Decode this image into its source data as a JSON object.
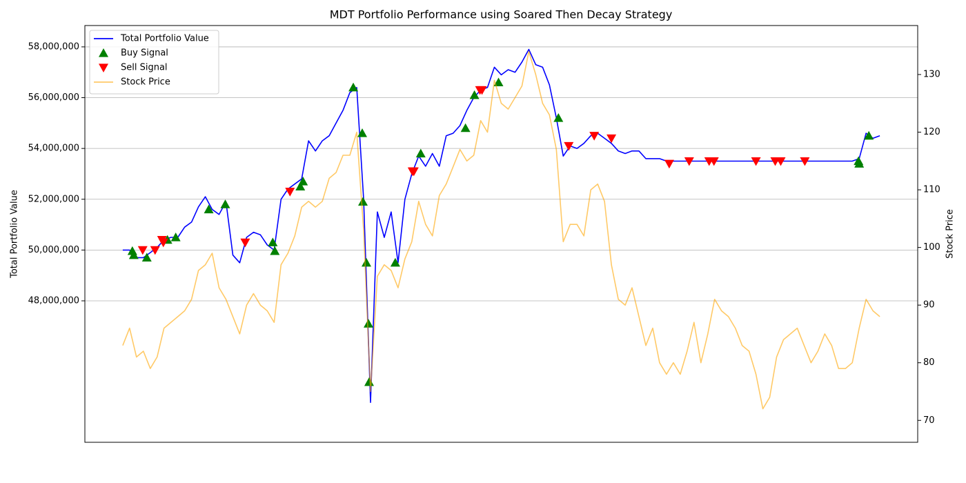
{
  "chart_data": {
    "type": "line",
    "title": "MDT Portfolio Performance using Soared Then Decay Strategy",
    "ylabel": "Total Portfolio Value",
    "y2label": "Stock Price",
    "xlim": [
      -5.5,
      115.5
    ],
    "ylim": [
      42430000,
      58840000
    ],
    "yticks": [
      {
        "value": 48000000,
        "label": "48,000,000"
      },
      {
        "value": 50000000,
        "label": "50,000,000"
      },
      {
        "value": 52000000,
        "label": "52,000,000"
      },
      {
        "value": 54000000,
        "label": "54,000,000"
      },
      {
        "value": 56000000,
        "label": "56,000,000"
      },
      {
        "value": 58000000,
        "label": "58,000,000"
      }
    ],
    "y2lim": [
      66.2,
      138.5
    ],
    "y2ticks": [
      70,
      80,
      90,
      100,
      110,
      120,
      130
    ],
    "grid": true,
    "legend": "upper left",
    "series": [
      {
        "name": "Total Portfolio Value",
        "type": "line",
        "color": "#0000ff",
        "values": [
          50000000,
          50000000,
          49700000,
          49700000,
          49900000,
          50100000,
          50400000,
          50500000,
          50500000,
          50900000,
          51100000,
          51700000,
          52100000,
          51600000,
          51400000,
          51900000,
          49800000,
          49500000,
          50500000,
          50700000,
          50600000,
          50200000,
          50000000,
          52000000,
          52400000,
          52600000,
          52800000,
          54300000,
          53900000,
          54300000,
          54500000,
          55000000,
          55500000,
          56200000,
          56400000,
          52000000,
          44000000,
          51500000,
          50500000,
          51500000,
          49500000,
          52000000,
          53000000,
          53700000,
          53300000,
          53800000,
          53300000,
          54500000,
          54600000,
          54900000,
          55500000,
          56000000,
          56300000,
          56400000,
          57200000,
          56900000,
          57100000,
          57000000,
          57400000,
          57900000,
          57300000,
          57200000,
          56500000,
          55200000,
          53700000,
          54100000,
          54000000,
          54200000,
          54500000,
          54600000,
          54400000,
          54200000,
          53900000,
          53800000,
          53900000,
          53900000,
          53600000,
          53600000,
          53600000,
          53500000,
          53500000,
          53500000,
          53500000,
          53500000,
          53500000,
          53500000,
          53500000,
          53500000,
          53500000,
          53500000,
          53500000,
          53500000,
          53500000,
          53500000,
          53500000,
          53500000,
          53500000,
          53500000,
          53500000,
          53500000,
          53500000,
          53500000,
          53500000,
          53500000,
          53500000,
          53500000,
          53500000,
          53600000,
          54600000,
          54400000,
          54500000
        ]
      },
      {
        "name": "Buy Signal",
        "type": "scatter",
        "marker": "up",
        "color": "#008000",
        "x": [
          1.4,
          1.6,
          3.5,
          6.5,
          7.7,
          12.5,
          14.9,
          21.8,
          22.1,
          25.8,
          26.2,
          33.5,
          34.8,
          34.9,
          35.4,
          35.7,
          35.8,
          39.6,
          43.3,
          49.8,
          51.1,
          54.6,
          63.3,
          106.9,
          107.0,
          108.4
        ],
        "values": [
          49960000,
          49800000,
          49700000,
          50400000,
          50500000,
          51600000,
          51800000,
          50300000,
          49960000,
          52500000,
          52700000,
          56400000,
          54600000,
          51900000,
          49500000,
          47100000,
          44800000,
          49500000,
          53800000,
          54800000,
          56100000,
          56600000,
          55200000,
          53500000,
          53400000,
          54500000
        ]
      },
      {
        "name": "Sell Signal",
        "type": "scatter",
        "marker": "down",
        "color": "#ff0000",
        "x": [
          2.9,
          4.7,
          5.7,
          5.9,
          17.8,
          24.3,
          42.1,
          42.3,
          51.9,
          52.2,
          64.8,
          68.5,
          71.0,
          79.4,
          82.3,
          85.2,
          85.9,
          92.0,
          94.8,
          95.6,
          99.1
        ],
        "values": [
          50000000,
          50000000,
          50400000,
          50300000,
          50300000,
          52300000,
          53100000,
          53100000,
          56300000,
          56300000,
          54100000,
          54500000,
          54400000,
          53400000,
          53500000,
          53500000,
          53500000,
          53500000,
          53500000,
          53500000,
          53500000
        ]
      },
      {
        "name": "Stock Price",
        "type": "line",
        "color": "#ffa500",
        "opacity": 0.6,
        "axis": "y2",
        "values": [
          83,
          86,
          81,
          82,
          79,
          81,
          86,
          87,
          88,
          89,
          91,
          96,
          97,
          99,
          93,
          91,
          88,
          85,
          90,
          92,
          90,
          89,
          87,
          97,
          99,
          102,
          107,
          108,
          107,
          108,
          112,
          113,
          116,
          116,
          120,
          103,
          75,
          95,
          97,
          96,
          93,
          98,
          101,
          108,
          104,
          102,
          109,
          111,
          114,
          117,
          115,
          116,
          122,
          120,
          129,
          125,
          124,
          126,
          128,
          134,
          130,
          125,
          123,
          117,
          101,
          104,
          104,
          102,
          110,
          111,
          108,
          97,
          91,
          90,
          93,
          88,
          83,
          86,
          80,
          78,
          80,
          78,
          82,
          87,
          80,
          85,
          91,
          89,
          88,
          86,
          83,
          82,
          78,
          72,
          74,
          81,
          84,
          85,
          86,
          83,
          80,
          82,
          85,
          83,
          79,
          79,
          80,
          86,
          91,
          89,
          88
        ]
      }
    ]
  }
}
